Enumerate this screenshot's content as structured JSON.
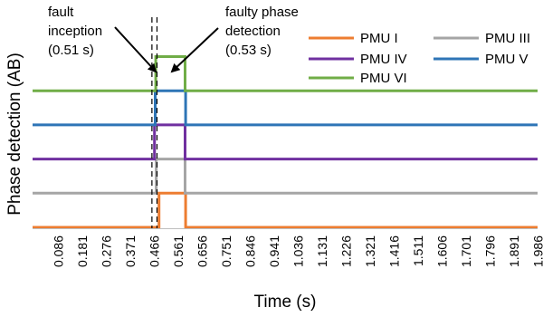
{
  "chart_data": {
    "type": "line",
    "title": "",
    "xlabel": "Time (s)",
    "ylabel": "Phase detection (AB)",
    "x_tick_labels": [
      "0.086",
      "0.181",
      "0.276",
      "0.371",
      "0.466",
      "0.561",
      "0.656",
      "0.751",
      "0.846",
      "0.941",
      "1.036",
      "1.131",
      "1.226",
      "1.321",
      "1.416",
      "1.511",
      "1.606",
      "1.701",
      "1.796",
      "1.891",
      "1.986"
    ],
    "xlim": [
      0.0385,
      2.0335
    ],
    "grid": false,
    "legend_position": "top-right",
    "colors": {
      "axis": "#bfbfbf",
      "dashed": "#000000",
      "arrow": "#000000"
    },
    "series": [
      {
        "name": "PMU I",
        "color": "#ed7d31",
        "points": [
          [
            0.0385,
            0
          ],
          [
            0.538,
            0
          ],
          [
            0.538,
            1
          ],
          [
            0.643,
            1
          ],
          [
            0.643,
            0
          ],
          [
            2.0335,
            0
          ]
        ]
      },
      {
        "name": "PMU III",
        "color": "#a5a5a5",
        "points": [
          [
            0.0385,
            1
          ],
          [
            0.527,
            1
          ],
          [
            0.527,
            2
          ],
          [
            0.641,
            2
          ],
          [
            0.641,
            1
          ],
          [
            2.0335,
            1
          ]
        ]
      },
      {
        "name": "PMU IV",
        "color": "#7030a0",
        "points": [
          [
            0.0385,
            2
          ],
          [
            0.52,
            2
          ],
          [
            0.52,
            3
          ],
          [
            0.641,
            3
          ],
          [
            0.641,
            2
          ],
          [
            2.0335,
            2
          ]
        ]
      },
      {
        "name": "PMU V",
        "color": "#2e75b6",
        "points": [
          [
            0.0385,
            3
          ],
          [
            0.523,
            3
          ],
          [
            0.523,
            4
          ],
          [
            0.643,
            4
          ],
          [
            0.643,
            3
          ],
          [
            2.0335,
            3
          ]
        ]
      },
      {
        "name": "PMU VI",
        "color": "#70ad47",
        "points": [
          [
            0.0385,
            4
          ],
          [
            0.525,
            4
          ],
          [
            0.525,
            5
          ],
          [
            0.641,
            5
          ],
          [
            0.641,
            4
          ],
          [
            2.0335,
            4
          ]
        ]
      }
    ],
    "annotations": [
      {
        "lines": [
          "fault",
          "inception",
          "(0.51 s)"
        ],
        "x": 0.51
      },
      {
        "lines": [
          "faulty phase",
          "detection",
          "(0.53 s)"
        ],
        "x": 0.53
      }
    ]
  }
}
